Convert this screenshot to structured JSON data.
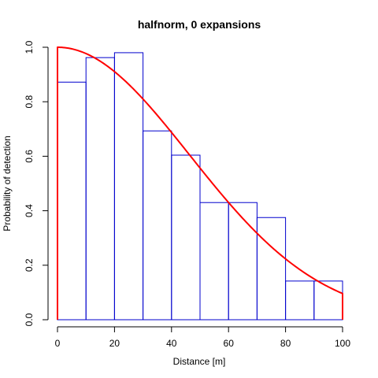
{
  "chart_data": {
    "type": "bar",
    "title": "halfnorm, 0 expansions",
    "xlabel": "Distance [m]",
    "ylabel": "Probability of detection",
    "xlim": [
      0,
      100
    ],
    "ylim": [
      0,
      1.0
    ],
    "x_ticks": [
      "0",
      "20",
      "40",
      "60",
      "80",
      "100"
    ],
    "y_ticks": [
      "0.0",
      "0.2",
      "0.4",
      "0.6",
      "0.8",
      "1.0"
    ],
    "bin_edges": [
      0,
      10,
      20,
      30,
      40,
      50,
      60,
      70,
      80,
      90,
      100
    ],
    "values": [
      0.872,
      0.962,
      0.98,
      0.693,
      0.604,
      0.43,
      0.43,
      0.375,
      0.142,
      0.142
    ],
    "bar_color": "#0000CD",
    "curve": {
      "type": "halfnormal",
      "sigma": 46.2,
      "color": "#FF0000"
    },
    "grid": false
  }
}
